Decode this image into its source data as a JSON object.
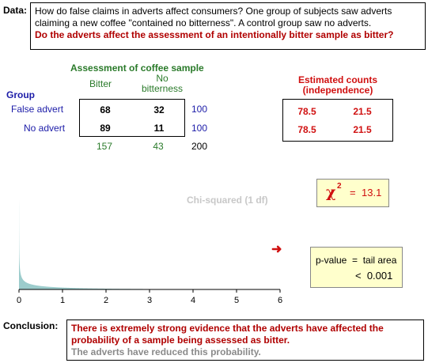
{
  "data_label": "Data:",
  "question": {
    "line1": "How do false claims in adverts affect consumers? One group of subjects saw adverts",
    "line2": "claiming a new coffee \"contained no bitterness\". A control group saw no adverts.",
    "highlight": "Do the adverts affect the assessment of an intentionally bitter sample as bitter?"
  },
  "table": {
    "title": "Assessment of coffee sample",
    "col_bitter": "Bitter",
    "col_no_1": "No",
    "col_no_2": "bitterness",
    "group_label": "Group",
    "rows": [
      {
        "label": "False advert",
        "bitter": "68",
        "no_bitterness": "32",
        "total": "100"
      },
      {
        "label": "No advert",
        "bitter": "89",
        "no_bitterness": "11",
        "total": "100"
      }
    ],
    "col_totals": {
      "bitter": "157",
      "no_bitterness": "43",
      "grand": "200"
    }
  },
  "estimated": {
    "title_1": "Estimated counts",
    "title_2": "(independence)",
    "rows": [
      {
        "bitter": "78.5",
        "no_bitterness": "21.5"
      },
      {
        "bitter": "78.5",
        "no_bitterness": "21.5"
      }
    ]
  },
  "chi_squared": {
    "symbol": "χ",
    "sup": "2",
    "eq": "=",
    "value": "13.1"
  },
  "distribution_label": "Chi-squared (1 df)",
  "p_value": {
    "line1": "p-value  =  tail area",
    "line2": "<  0.001"
  },
  "arrow": "➜",
  "chart_data": {
    "type": "area",
    "title": "Chi-squared (1 df)",
    "xlim": [
      0,
      6
    ],
    "x_ticks": [
      "0",
      "1",
      "2",
      "3",
      "4",
      "5",
      "6"
    ],
    "fill_color": "#9ccccc"
  },
  "conclusion": {
    "label": "Conclusion:",
    "line1": "There is extremely strong evidence that the adverts have affected the",
    "line2": "probability of a sample being assessed as bitter.",
    "line3": "The adverts have reduced this probability."
  }
}
